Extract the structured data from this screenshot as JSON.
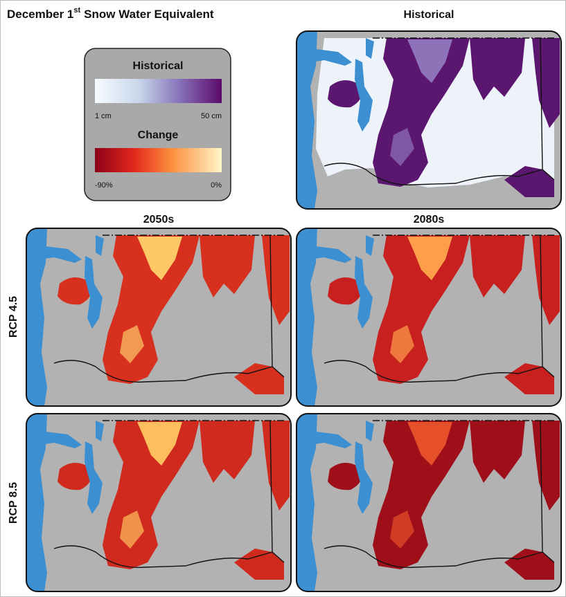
{
  "title": {
    "main": "December 1",
    "superscript": "st",
    "rest": "Snow Water Equivalent"
  },
  "legend": {
    "historical": {
      "title": "Historical",
      "min_label": "1 cm",
      "max_label": "50 cm"
    },
    "change": {
      "title": "Change",
      "min_label": "-90%",
      "max_label": "0%"
    }
  },
  "panels": {
    "historical": "Historical",
    "columns": [
      "2050s",
      "2080s"
    ],
    "rows": [
      "RCP 4.5",
      "RCP 8.5"
    ]
  }
}
